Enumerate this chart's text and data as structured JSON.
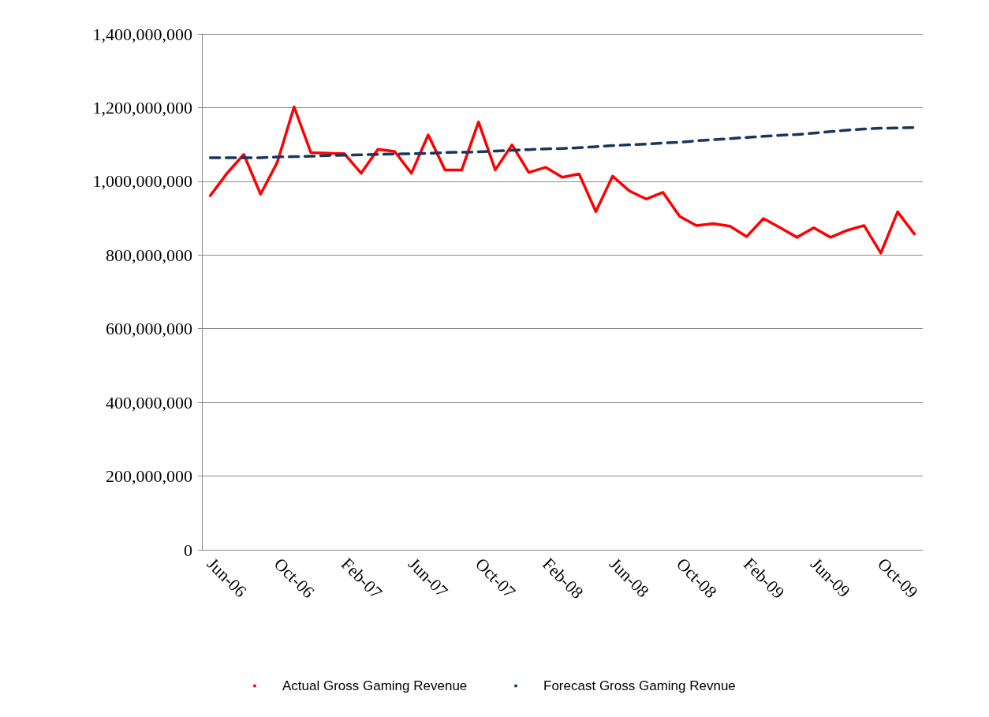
{
  "chart_data": {
    "type": "line",
    "categories": [
      "Jun-06",
      null,
      null,
      null,
      "Oct-06",
      null,
      null,
      null,
      "Feb-07",
      null,
      null,
      null,
      "Jun-07",
      null,
      null,
      null,
      "Oct-07",
      null,
      null,
      null,
      "Feb-08",
      null,
      null,
      null,
      "Jun-08",
      null,
      null,
      null,
      "Oct-08",
      null,
      null,
      null,
      "Feb-09",
      null,
      null,
      null,
      "Jun-09",
      null,
      null,
      null,
      "Oct-09",
      null,
      null
    ],
    "series": [
      {
        "name": "Actual Gross Gaming Revenue",
        "color": "#ff0000",
        "line_style": "solid",
        "values": [
          961000000,
          1022000000,
          1073000000,
          965000000,
          1052000000,
          1202000000,
          1078000000,
          1076000000,
          1075000000,
          1022000000,
          1087000000,
          1081000000,
          1022000000,
          1126000000,
          1031000000,
          1031000000,
          1161000000,
          1031000000,
          1099000000,
          1024000000,
          1038000000,
          1011000000,
          1020000000,
          918000000,
          1014000000,
          974000000,
          952000000,
          970000000,
          905000000,
          880000000,
          885000000,
          878000000,
          850000000,
          899000000,
          874000000,
          848000000,
          874000000,
          848000000,
          867000000,
          880000000,
          805000000,
          917000000,
          857000000
        ]
      },
      {
        "name": "Forecast Gross Gaming Revnue",
        "color": "#17375e",
        "line_style": "dashed",
        "values": [
          1064000000,
          1064000000,
          1064000000,
          1064000000,
          1066000000,
          1067000000,
          1068000000,
          1070000000,
          1071000000,
          1072000000,
          1073000000,
          1074000000,
          1075000000,
          1076000000,
          1078000000,
          1079000000,
          1080000000,
          1082000000,
          1084000000,
          1086000000,
          1088000000,
          1089000000,
          1091000000,
          1094000000,
          1097000000,
          1099000000,
          1101000000,
          1104000000,
          1106000000,
          1110000000,
          1113000000,
          1116000000,
          1119000000,
          1122000000,
          1125000000,
          1127000000,
          1131000000,
          1135000000,
          1139000000,
          1142000000,
          1144000000,
          1145000000,
          1146000000
        ]
      }
    ],
    "ylim": [
      0,
      1400000000
    ],
    "yticks": [
      {
        "value": 0,
        "label": "0"
      },
      {
        "value": 200000000,
        "label": "200,000,000"
      },
      {
        "value": 400000000,
        "label": "400,000,000"
      },
      {
        "value": 600000000,
        "label": "600,000,000"
      },
      {
        "value": 800000000,
        "label": "800,000,000"
      },
      {
        "value": 1000000000,
        "label": "1,000,000,000"
      },
      {
        "value": 1200000000,
        "label": "1,200,000,000"
      },
      {
        "value": 1400000000,
        "label": "1,400,000,000"
      }
    ],
    "grid": "y",
    "legend": "bottom",
    "marker": "none"
  }
}
